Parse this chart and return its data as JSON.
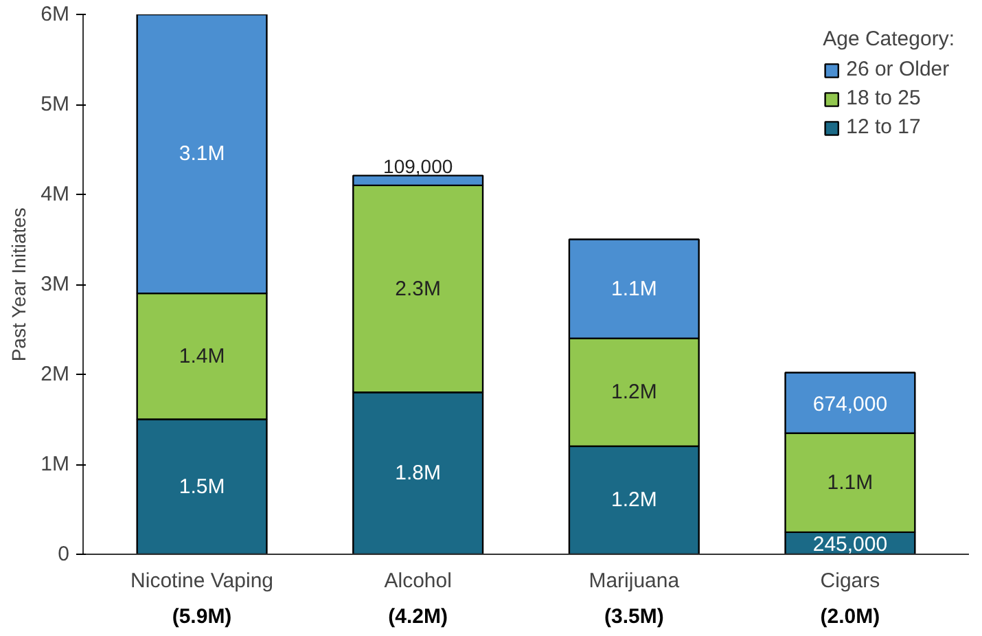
{
  "chart_data": {
    "type": "bar",
    "stacked": true,
    "ylabel": "Past Year Initiates",
    "legend_title": "Age Category:",
    "legend": "top right",
    "grid": false,
    "categories": [
      "Nicotine Vaping",
      "Alcohol",
      "Marijuana",
      "Cigars"
    ],
    "totals": [
      "(5.9M)",
      "(4.2M)",
      "(3.5M)",
      "(2.0M)"
    ],
    "ylim": [
      0,
      6000000
    ],
    "yticks": [
      0,
      {
        "value": 1000000,
        "label": "1M"
      },
      {
        "value": 2000000,
        "label": "2M"
      },
      {
        "value": 3000000,
        "label": "3M"
      },
      {
        "value": 4000000,
        "label": "4M"
      },
      {
        "value": 5000000,
        "label": "5M"
      },
      {
        "value": 6000000,
        "label": "6M"
      }
    ],
    "series": [
      {
        "name": "12 to 17",
        "color": "#1b6a87",
        "values": [
          1500000,
          1800000,
          1200000,
          245000
        ],
        "value_labels": [
          "1.5M",
          "1.8M",
          "1.2M",
          "245,000"
        ]
      },
      {
        "name": "18 to 25",
        "color": "#92c74f",
        "values": [
          1400000,
          2300000,
          1200000,
          1100000
        ],
        "value_labels": [
          "1.4M",
          "2.3M",
          "1.2M",
          "1.1M"
        ]
      },
      {
        "name": "26 or Older",
        "color": "#4b8fd1",
        "values": [
          3100000,
          109000,
          1100000,
          674000
        ],
        "value_labels": [
          "3.1M",
          "109,000",
          "1.1M",
          "674,000"
        ]
      }
    ]
  }
}
